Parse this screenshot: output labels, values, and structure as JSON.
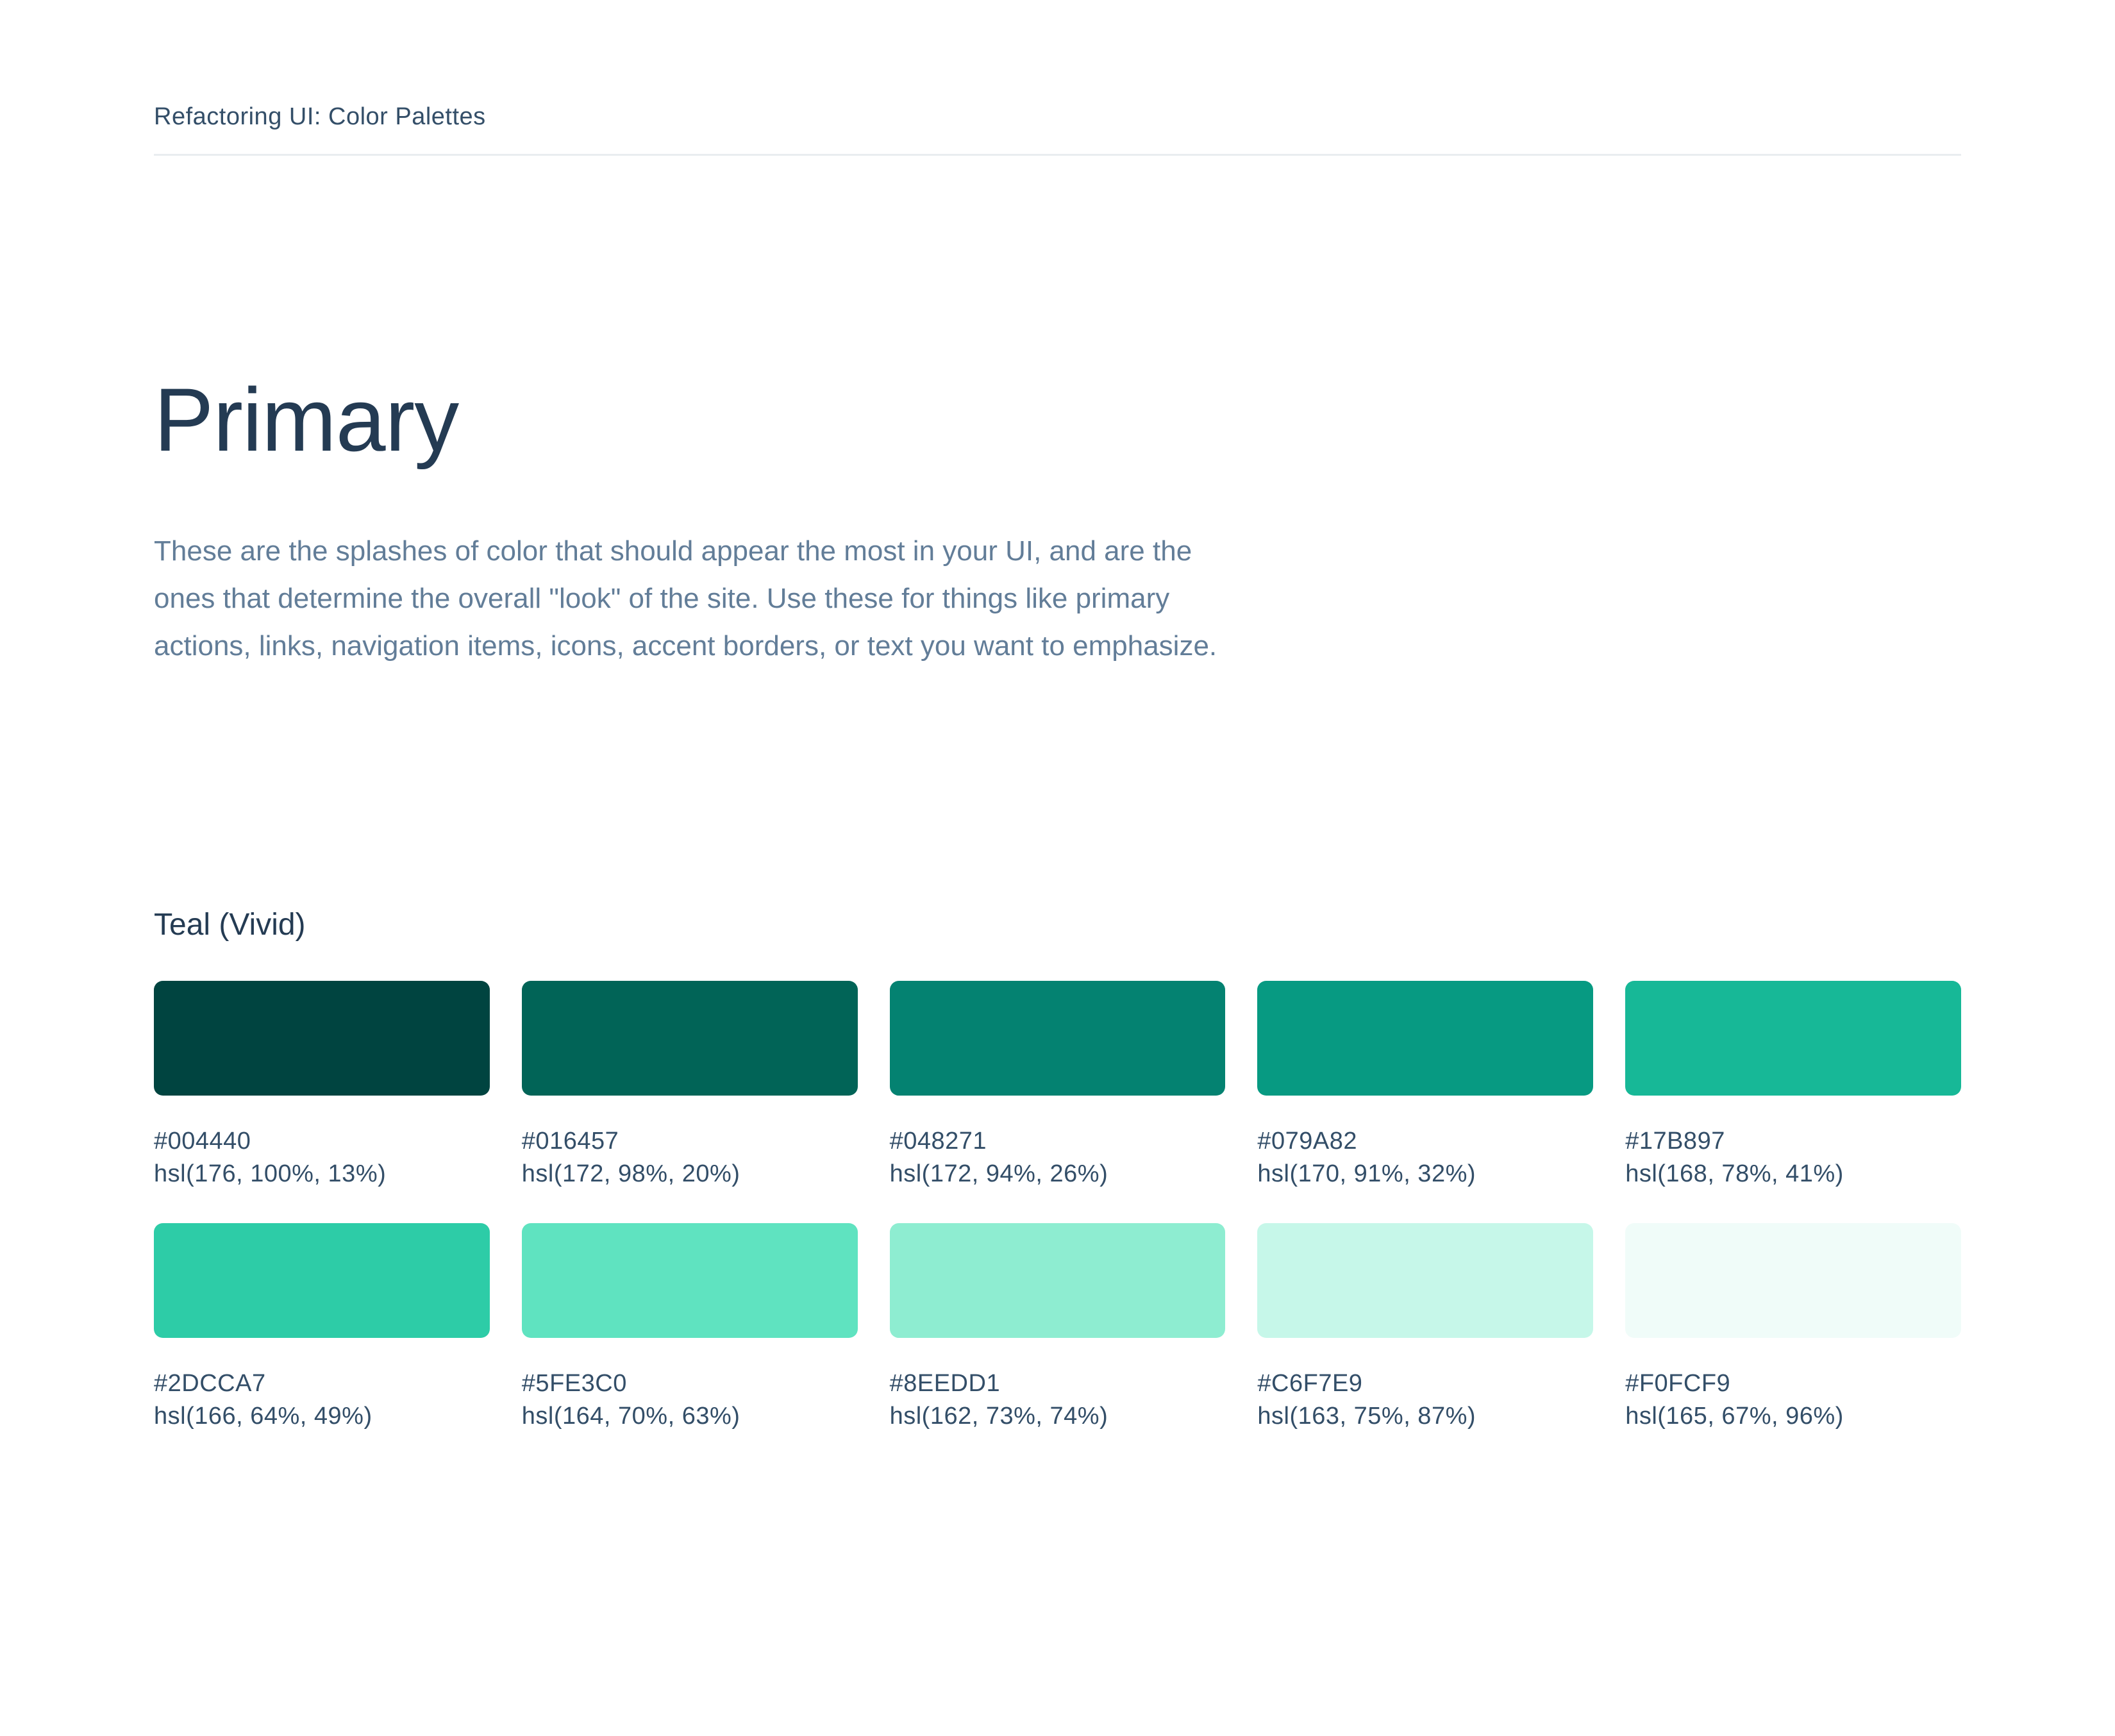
{
  "header": {
    "title": "Refactoring UI: Color Palettes"
  },
  "page": {
    "title": "Primary",
    "description": "These are the splashes of color that should appear the most in your UI, and are the ones that determine the overall \"look\" of the site. Use these for things like primary actions, links, navigation items, icons, accent borders, or text you want to emphasize."
  },
  "palette": {
    "name": "Teal (Vivid)",
    "swatches": [
      {
        "hex": "#004440",
        "hsl": "hsl(176, 100%, 13%)"
      },
      {
        "hex": "#016457",
        "hsl": "hsl(172, 98%, 20%)"
      },
      {
        "hex": "#048271",
        "hsl": "hsl(172, 94%, 26%)"
      },
      {
        "hex": "#079A82",
        "hsl": "hsl(170, 91%, 32%)"
      },
      {
        "hex": "#17B897",
        "hsl": "hsl(168, 78%, 41%)"
      },
      {
        "hex": "#2DCCA7",
        "hsl": "hsl(166, 64%, 49%)"
      },
      {
        "hex": "#5FE3C0",
        "hsl": "hsl(164, 70%, 63%)"
      },
      {
        "hex": "#8EEDD1",
        "hsl": "hsl(162, 73%, 74%)"
      },
      {
        "hex": "#C6F7E9",
        "hsl": "hsl(163, 75%, 87%)"
      },
      {
        "hex": "#F0FCF9",
        "hsl": "hsl(165, 67%, 96%)"
      }
    ]
  },
  "theme": {
    "c-heading": "#243B53",
    "c-body": "#627D98",
    "c-label": "#334E68",
    "c-divider": "#E9EDF0",
    "c-background": "#FFFFFF"
  }
}
